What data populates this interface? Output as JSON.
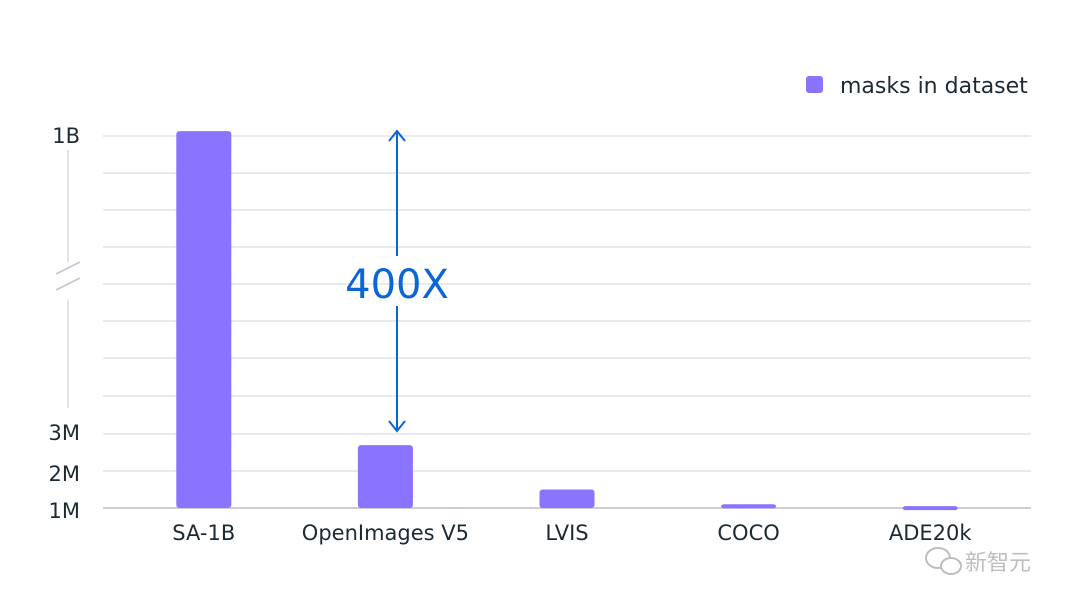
{
  "chart_data": {
    "type": "bar",
    "categories": [
      "SA-1B",
      "OpenImages V5",
      "LVIS",
      "COCO",
      "ADE20k"
    ],
    "series": [
      {
        "name": "masks in dataset",
        "values": [
          1100000000,
          2700000,
          1500000,
          1100000,
          1050000
        ]
      }
    ],
    "y_ticks": [
      "1M",
      "2M",
      "3M",
      "1B"
    ],
    "y_axis": "broken axis: 1M to 3M linear, break, then up to 1B",
    "ylim": [
      1000000,
      1100000000
    ],
    "grid": true,
    "legend": "top-right",
    "annotation": {
      "text": "400X",
      "from": "SA-1B",
      "to": "OpenImages V5"
    },
    "colors": {
      "bar": "#8a73ff",
      "annotation": "#0a66d8",
      "grid": "#dfe3e8"
    }
  },
  "watermark": {
    "text": "新智元"
  }
}
